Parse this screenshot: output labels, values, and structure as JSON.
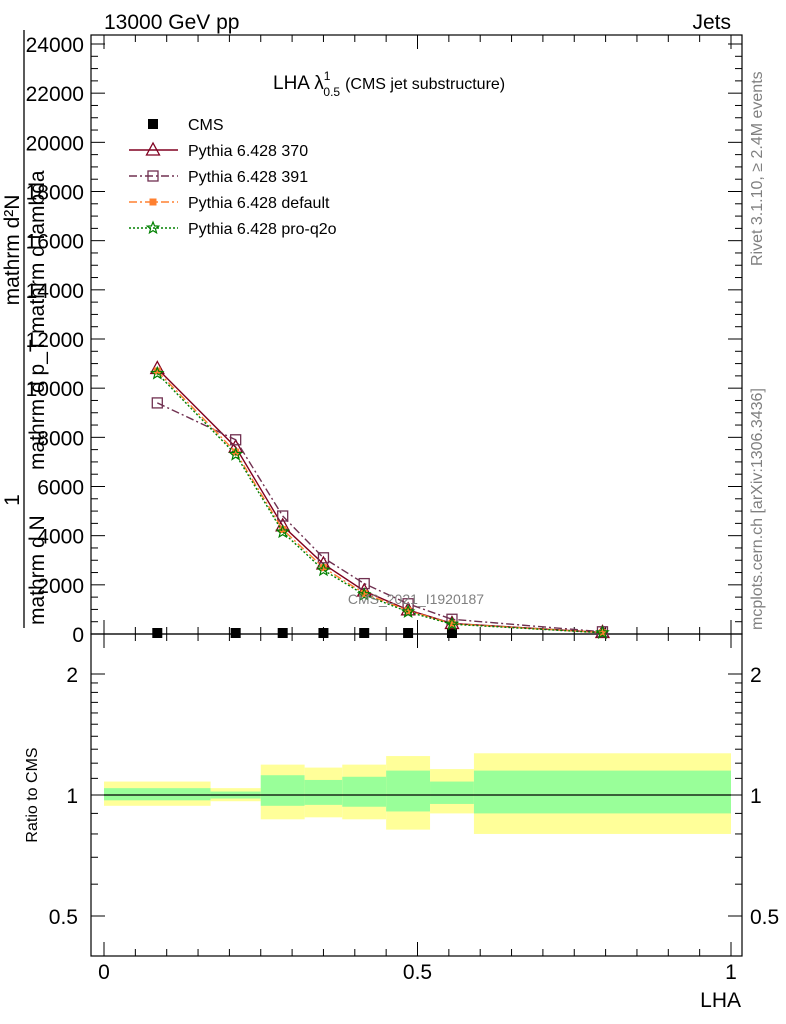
{
  "header": {
    "left": "13000 GeV pp",
    "right": "Jets"
  },
  "side_text": {
    "rivet": "Rivet 3.1.10, ≥ 2.4M events",
    "mcplots": "mcplots.cern.ch [arXiv:1306.3436]"
  },
  "watermark": "CMS_2021_I1920187",
  "chart_data": [
    {
      "type": "line",
      "title_main": "LHA λ",
      "title_sup": "1",
      "title_sub": "0.5",
      "title_note": "(CMS jet substructure)",
      "ylabel_main": "1",
      "ylabel_den1": "mathrm d N",
      "ylabel_num2": "mathrm d²N",
      "ylabel_den2": "mathrm d p_T mathrm d lambda",
      "ylim": [
        0,
        24000
      ],
      "xlim": [
        0,
        1
      ],
      "y_ticks": [
        {
          "v": 0,
          "label": "0"
        },
        {
          "v": 2000,
          "label": "2000"
        },
        {
          "v": 4000,
          "label": "4000"
        },
        {
          "v": 6000,
          "label": "6000"
        },
        {
          "v": 8000,
          "label": "8000"
        },
        {
          "v": 10000,
          "label": "10000"
        },
        {
          "v": 12000,
          "label": "12000"
        },
        {
          "v": 14000,
          "label": "14000"
        },
        {
          "v": 16000,
          "label": "16000"
        },
        {
          "v": 18000,
          "label": "18000"
        },
        {
          "v": 20000,
          "label": "20000"
        },
        {
          "v": 22000,
          "label": "22000"
        },
        {
          "v": 24000,
          "label": "24000"
        }
      ],
      "series": [
        {
          "name": "CMS",
          "color": "#000000",
          "marker": "square-filled",
          "dash": "none",
          "x": [
            0.085,
            0.21,
            0.285,
            0.35,
            0.415,
            0.485,
            0.555
          ],
          "values": [
            0,
            0,
            0,
            0,
            0,
            0,
            0
          ]
        },
        {
          "name": "Pythia 6.428 370",
          "color": "#800020",
          "marker": "triangle-open",
          "dash": "solid",
          "x": [
            0.085,
            0.21,
            0.285,
            0.35,
            0.415,
            0.485,
            0.555,
            0.795
          ],
          "values": [
            10800,
            7600,
            4400,
            2850,
            1750,
            980,
            430,
            60
          ]
        },
        {
          "name": "Pythia 6.428 391",
          "color": "#703050",
          "marker": "square-open",
          "dash": "dashdot",
          "x": [
            0.085,
            0.21,
            0.285,
            0.35,
            0.415,
            0.485,
            0.555,
            0.795
          ],
          "values": [
            9400,
            7900,
            4800,
            3100,
            2050,
            1230,
            600,
            90
          ]
        },
        {
          "name": "Pythia 6.428 default",
          "color": "#ff8030",
          "marker": "square-filled-small",
          "dash": "dashdot",
          "x": [
            0.085,
            0.21,
            0.285,
            0.35,
            0.415,
            0.485,
            0.555,
            0.795
          ],
          "values": [
            10700,
            7400,
            4250,
            2700,
            1650,
            950,
            420,
            55
          ]
        },
        {
          "name": "Pythia 6.428 pro-q2o",
          "color": "#008000",
          "marker": "star",
          "dash": "dotted",
          "x": [
            0.085,
            0.21,
            0.285,
            0.35,
            0.415,
            0.485,
            0.555,
            0.795
          ],
          "values": [
            10600,
            7300,
            4150,
            2600,
            1600,
            900,
            400,
            50
          ]
        }
      ]
    },
    {
      "type": "area",
      "ylabel": "Ratio to CMS",
      "xlabel": "LHA",
      "ylim": [
        0.4,
        2.4
      ],
      "log_scale": true,
      "y_ticks": [
        {
          "v": 0.5,
          "label": "0.5"
        },
        {
          "v": 1,
          "label": "1"
        },
        {
          "v": 2,
          "label": "2"
        }
      ],
      "x_ticks": [
        {
          "v": 0,
          "label": "0"
        },
        {
          "v": 0.5,
          "label": "0.5"
        },
        {
          "v": 1,
          "label": "1"
        }
      ],
      "reference_line": 1,
      "bands": [
        {
          "x0": 0.0,
          "x1": 0.17,
          "yellow": [
            0.94,
            1.08
          ],
          "green": [
            0.97,
            1.04
          ]
        },
        {
          "x0": 0.17,
          "x1": 0.25,
          "yellow": [
            0.965,
            1.04
          ],
          "green": [
            0.98,
            1.02
          ]
        },
        {
          "x0": 0.25,
          "x1": 0.32,
          "yellow": [
            0.87,
            1.19
          ],
          "green": [
            0.94,
            1.12
          ]
        },
        {
          "x0": 0.32,
          "x1": 0.38,
          "yellow": [
            0.88,
            1.17
          ],
          "green": [
            0.945,
            1.09
          ]
        },
        {
          "x0": 0.38,
          "x1": 0.45,
          "yellow": [
            0.87,
            1.19
          ],
          "green": [
            0.935,
            1.11
          ]
        },
        {
          "x0": 0.45,
          "x1": 0.52,
          "yellow": [
            0.82,
            1.25
          ],
          "green": [
            0.91,
            1.15
          ]
        },
        {
          "x0": 0.52,
          "x1": 0.59,
          "yellow": [
            0.9,
            1.16
          ],
          "green": [
            0.95,
            1.08
          ]
        },
        {
          "x0": 0.59,
          "x1": 1.0,
          "yellow": [
            0.8,
            1.27
          ],
          "green": [
            0.9,
            1.15
          ]
        }
      ],
      "colors": {
        "yellow": "#ffff99",
        "green": "#99ff99"
      }
    }
  ]
}
